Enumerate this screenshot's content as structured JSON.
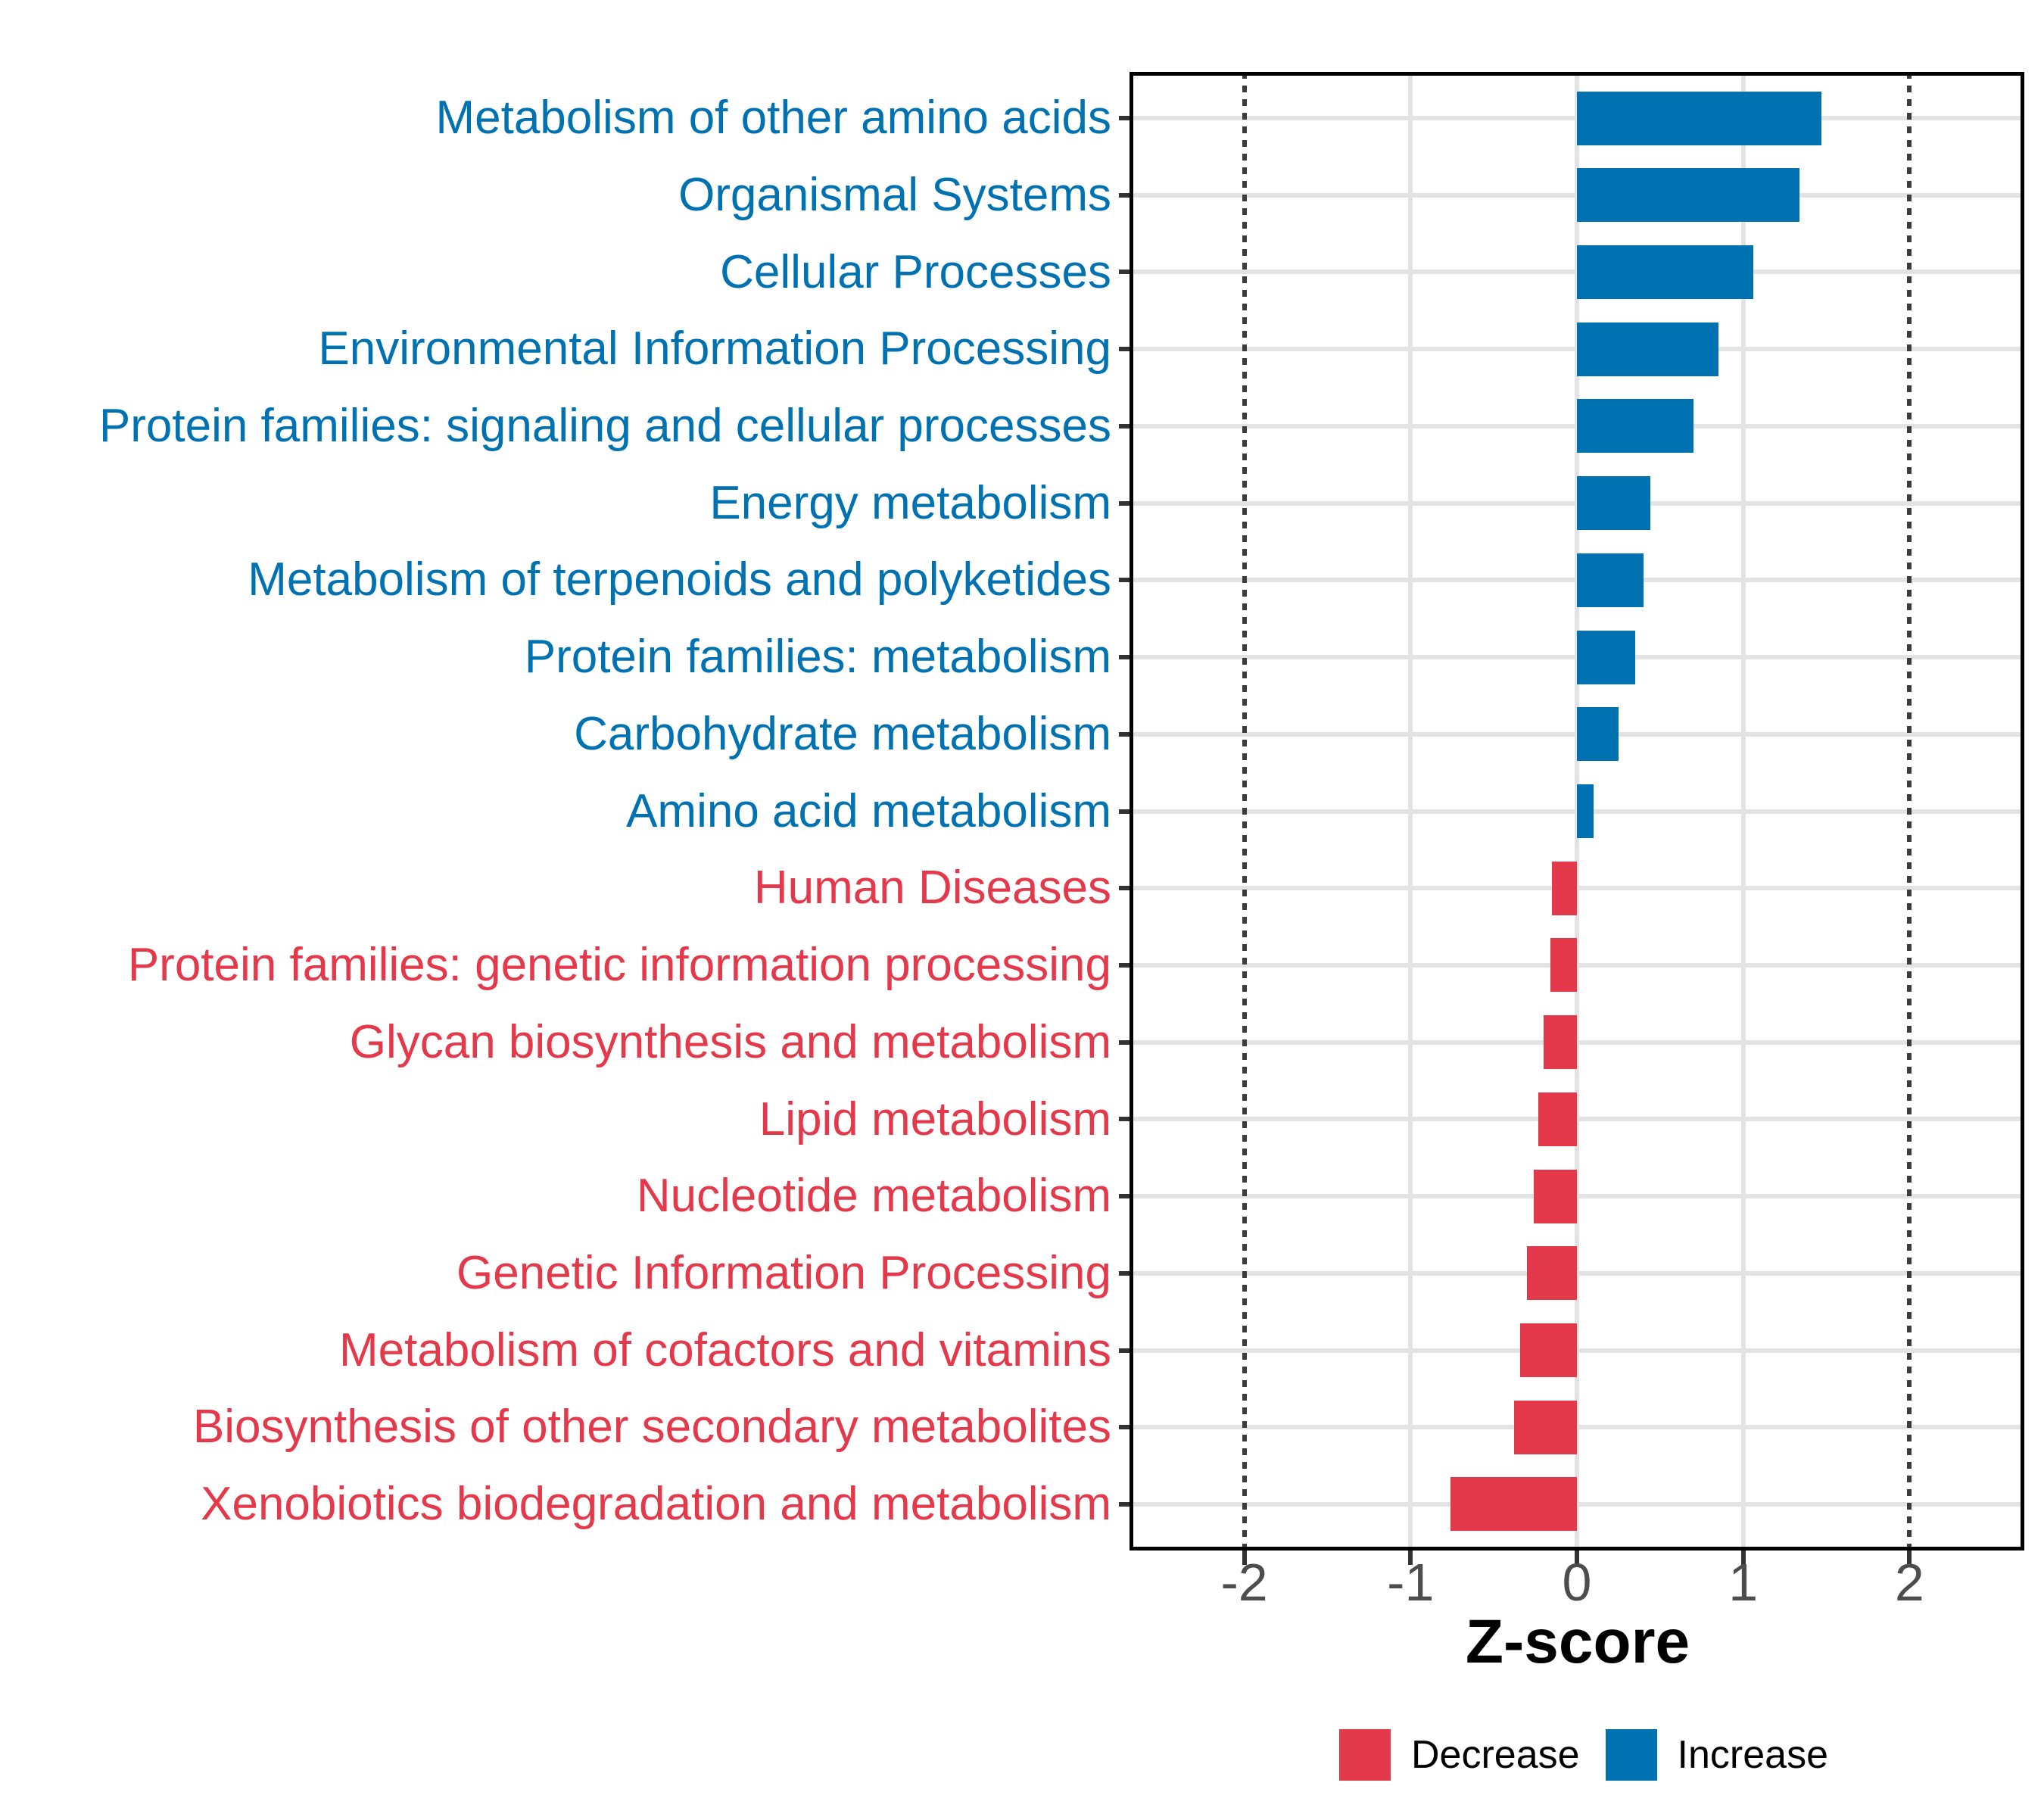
{
  "figure": {
    "background": "#FFFFFF"
  },
  "chart_data": {
    "type": "bar",
    "orientation": "horizontal",
    "title": "",
    "xlabel": "Z-score",
    "ylabel": "",
    "xlim": [
      -2.69,
      2.69
    ],
    "x_ticks": [
      -2,
      -1,
      0,
      1,
      2
    ],
    "x_tick_labels": [
      "-2",
      "-1",
      "0",
      "1",
      "2"
    ],
    "threshold_lines": [
      -2,
      2
    ],
    "grid": {
      "major_x": [
        -1,
        0,
        1
      ],
      "major_y": "every-category",
      "minor": false
    },
    "bar_width_fraction": 0.7,
    "categories": [
      "Metabolism of other amino acids",
      "Organismal Systems",
      "Cellular Processes",
      "Environmental Information Processing",
      "Protein families: signaling and cellular processes",
      "Energy metabolism",
      "Metabolism of terpenoids and polyketides",
      "Protein families: metabolism",
      "Carbohydrate metabolism",
      "Amino acid metabolism",
      "Human Diseases",
      "Protein families: genetic information processing",
      "Glycan biosynthesis and metabolism",
      "Lipid metabolism",
      "Nucleotide metabolism",
      "Genetic Information Processing",
      "Metabolism of cofactors and vitamins",
      "Biosynthesis of other secondary metabolites",
      "Xenobiotics biodegradation and metabolism"
    ],
    "values": [
      1.47,
      1.34,
      1.06,
      0.85,
      0.7,
      0.44,
      0.4,
      0.35,
      0.25,
      0.1,
      -0.15,
      -0.16,
      -0.2,
      -0.23,
      -0.26,
      -0.3,
      -0.34,
      -0.38,
      -0.76
    ],
    "directions": [
      "Increase",
      "Increase",
      "Increase",
      "Increase",
      "Increase",
      "Increase",
      "Increase",
      "Increase",
      "Increase",
      "Increase",
      "Decrease",
      "Decrease",
      "Decrease",
      "Decrease",
      "Decrease",
      "Decrease",
      "Decrease",
      "Decrease",
      "Decrease"
    ],
    "colors": {
      "Increase": "#0072B2",
      "Decrease": "#E4394B"
    },
    "axis_text_color": "#4D4D4D",
    "panel_border_color": "#000000",
    "gridline_color": "#E3E3E3",
    "threshold_line_color": "#3C3C3C",
    "legend": {
      "position": "bottom-center",
      "items": [
        {
          "label": "Decrease",
          "color": "#E4394B"
        },
        {
          "label": "Increase",
          "color": "#0072B2"
        }
      ]
    }
  }
}
